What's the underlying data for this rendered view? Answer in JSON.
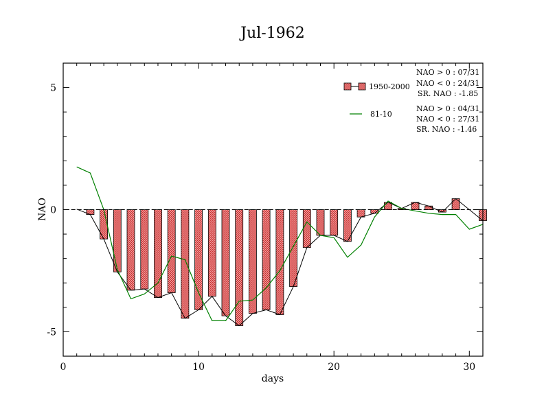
{
  "chart_data": {
    "type": "bar",
    "title": "Jul-1962",
    "xlabel": "days",
    "ylabel": "NAO",
    "xlim": [
      0,
      31
    ],
    "ylim": [
      -6,
      6
    ],
    "x_ticks": [
      0,
      10,
      20,
      30
    ],
    "y_ticks": [
      -5,
      0,
      5
    ],
    "x_tick_labels": [
      "0",
      "10",
      "20",
      "30"
    ],
    "y_tick_labels": [
      "-5",
      "0",
      "5"
    ],
    "days": [
      1,
      2,
      3,
      4,
      5,
      6,
      7,
      8,
      9,
      10,
      11,
      12,
      13,
      14,
      15,
      16,
      17,
      18,
      19,
      20,
      21,
      22,
      23,
      24,
      25,
      26,
      27,
      28,
      29,
      30,
      31
    ],
    "series": [
      {
        "name": "1950-2000",
        "kind": "bar",
        "color": "#e06666",
        "values": [
          0.02,
          -0.2,
          -1.2,
          -2.55,
          -3.3,
          -3.25,
          -3.6,
          -3.4,
          -4.45,
          -4.1,
          -3.55,
          -4.35,
          -4.75,
          -4.25,
          -4.1,
          -4.3,
          -3.15,
          -1.55,
          -1.05,
          -1.05,
          -1.3,
          -0.3,
          -0.15,
          0.3,
          0.05,
          0.3,
          0.15,
          -0.1,
          0.45,
          0.0,
          -0.45
        ]
      },
      {
        "name": "81-10",
        "kind": "line",
        "color": "#008000",
        "values": [
          1.75,
          1.5,
          0.0,
          -2.45,
          -3.65,
          -3.45,
          -3.0,
          -1.9,
          -2.05,
          -3.4,
          -4.55,
          -4.55,
          -3.75,
          -3.7,
          -3.2,
          -2.5,
          -1.5,
          -0.5,
          -1.05,
          -1.15,
          -1.95,
          -1.45,
          -0.3,
          0.35,
          0.05,
          -0.05,
          -0.15,
          -0.2,
          -0.2,
          -0.8,
          -0.6
        ]
      }
    ],
    "legend": {
      "placement": "top-right",
      "entries": [
        {
          "label": "1950-2000",
          "stats": [
            "NAO > 0 : 07/31",
            "NAO < 0 : 24/31",
            "SR. NAO : -1.85"
          ]
        },
        {
          "label": "81-10",
          "stats": [
            "NAO > 0 : 04/31",
            "NAO < 0 : 27/31",
            "SR. NAO : -1.46"
          ]
        }
      ]
    },
    "grid": false
  }
}
